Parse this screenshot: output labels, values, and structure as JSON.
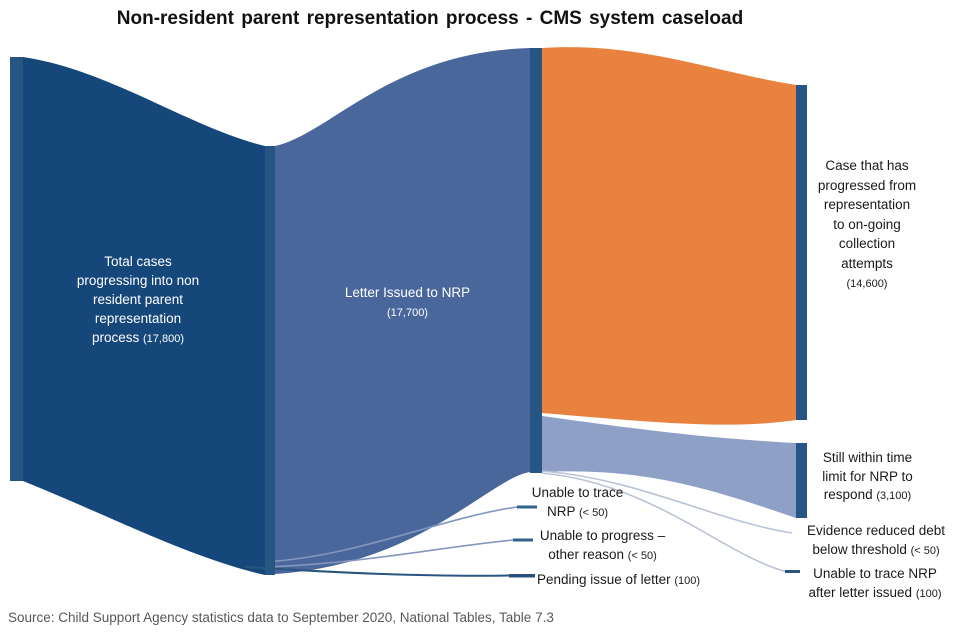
{
  "title": "Non-resident parent representation process - CMS system caseload",
  "source": "Source: Child Support Agency statistics data to September 2020, National Tables, Table 7.3",
  "colors": {
    "dark_flow": "#15477A",
    "node_bar": "#275685",
    "mid_flow": "#4A679C",
    "light_flow": "#8FA0C7",
    "orange_flow": "#E8823E",
    "thin_line": "#8396BD",
    "thin_line_light": "#B9C3D6",
    "text_dark": "#1a1a1a",
    "text_light": "#ffffff",
    "source_text": "#58585a"
  },
  "labels": {
    "total": "Total cases\nprogressing into non\nresident parent\nrepresentation\nprocess (17,800)",
    "letter": "Letter Issued to NRP\n(17,700)",
    "progressed": "Case that has\nprogressed from\nrepresentation\nto on-going\ncollection\nattempts\n(14,600)",
    "still_within": "Still within time\nlimit for NRP to\nrespond (3,100)",
    "evidence_reduced": "Evidence reduced debt\nbelow threshold (< 50)",
    "unable_after_letter": "Unable to trace NRP\nafter letter issued (100)",
    "unable_trace": "Unable to trace\nNRP (< 50)",
    "unable_progress": "Unable to progress –\nother reason (< 50)",
    "pending": "Pending issue of letter (100)"
  },
  "chart_data": {
    "type": "sankey",
    "title": "Non-resident parent representation process - CMS system caseload",
    "unit": "cases",
    "nodes": [
      {
        "name": "Total cases progressing into non resident parent representation process",
        "value": "17,800"
      },
      {
        "name": "Letter Issued to NRP",
        "value": "17,700"
      },
      {
        "name": "Case that has progressed from representation to on-going collection attempts",
        "value": "14,600"
      },
      {
        "name": "Still within time limit for NRP to respond",
        "value": "3,100"
      },
      {
        "name": "Evidence reduced debt below threshold",
        "value": "< 50"
      },
      {
        "name": "Unable to trace NRP after letter issued",
        "value": "100"
      },
      {
        "name": "Unable to trace NRP",
        "value": "< 50"
      },
      {
        "name": "Unable to progress – other reason",
        "value": "< 50"
      },
      {
        "name": "Pending issue of letter",
        "value": "100"
      }
    ],
    "links": [
      {
        "from": "Total cases progressing into non resident parent representation process",
        "to": "Letter Issued to NRP",
        "value": "17,700"
      },
      {
        "from": "Total cases progressing into non resident parent representation process",
        "to": "Pending issue of letter",
        "value": "100"
      },
      {
        "from": "Letter Issued to NRP",
        "to": "Unable to trace NRP",
        "value": "< 50"
      },
      {
        "from": "Letter Issued to NRP",
        "to": "Unable to progress – other reason",
        "value": "< 50"
      },
      {
        "from": "Letter Issued to NRP",
        "to": "Case that has progressed from representation to on-going collection attempts",
        "value": "14,600"
      },
      {
        "from": "Letter Issued to NRP",
        "to": "Still within time limit for NRP to respond",
        "value": "3,100"
      },
      {
        "from": "Letter Issued to NRP",
        "to": "Evidence reduced debt below threshold",
        "value": "< 50"
      },
      {
        "from": "Letter Issued to NRP",
        "to": "Unable to trace NRP after letter issued",
        "value": "100"
      }
    ],
    "layout": {
      "legend": "none",
      "grid": false,
      "axes": false
    },
    "source": "Source: Child Support Agency statistics data to September 2020, National Tables, Table 7.3"
  }
}
